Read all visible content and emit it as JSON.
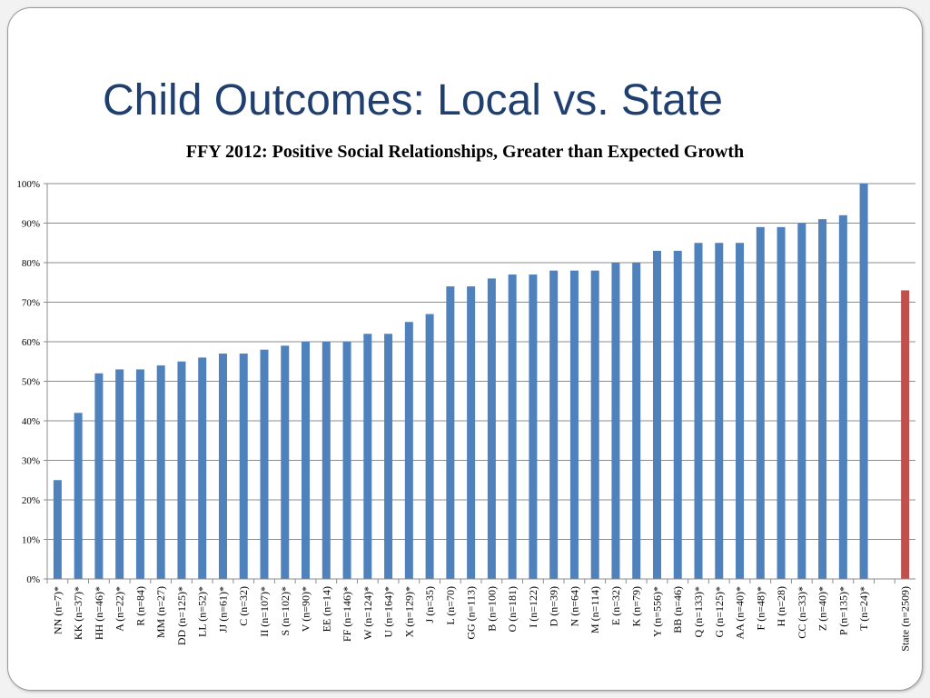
{
  "slide": {
    "title": "Child Outcomes: Local vs. State"
  },
  "chart_data": {
    "type": "bar",
    "title": "FFY 2012: Positive Social Relationships, Greater than Expected Growth",
    "xlabel": "",
    "ylabel": "",
    "ylim": [
      0,
      100
    ],
    "y_tick_labels": [
      "0%",
      "10%",
      "20%",
      "30%",
      "40%",
      "50%",
      "60%",
      "70%",
      "80%",
      "90%",
      "100%"
    ],
    "grid": true,
    "legend": "none",
    "colors": {
      "local": "#4f81bd",
      "state": "#c0504d"
    },
    "categories": [
      "NN (n=7)*",
      "KK (n=37)*",
      "HH (n=46)*",
      "A (n=22)*",
      "R (n=84)",
      "MM (n=27)",
      "DD (n=125)*",
      "LL (n=52)*",
      "JJ (n=61)*",
      "C (n=32)",
      "II (n=107)*",
      "S (n=102)*",
      "V (n=90)*",
      "EE (n=14)",
      "FF (n=146)*",
      "W (n=124)*",
      "U (n=164)*",
      "X (n=129)*",
      "J (n=35)",
      "L (n=70)",
      "GG (n=113)",
      "B (n=100)",
      "O (n=181)",
      "I (n=122)",
      "D (n=39)",
      "N (n=64)",
      "M (n=114)",
      "E (n=32)",
      "K (n=79)",
      "Y (n=556)*",
      "BB (n=46)",
      "Q (n=133)*",
      "G (n=125)*",
      "AA (n=40)*",
      "F (n=48)*",
      "H (n=28)",
      "CC (n=33)*",
      "Z (n=40)*",
      "P (n=135)*",
      "T (n=24)*",
      "",
      "State (n=2509)"
    ],
    "values": [
      25,
      42,
      52,
      53,
      53,
      54,
      55,
      56,
      57,
      57,
      58,
      59,
      60,
      60,
      60,
      62,
      62,
      65,
      67,
      74,
      74,
      76,
      77,
      77,
      78,
      78,
      78,
      80,
      80,
      83,
      83,
      85,
      85,
      85,
      89,
      89,
      90,
      91,
      92,
      100,
      null,
      73
    ]
  }
}
